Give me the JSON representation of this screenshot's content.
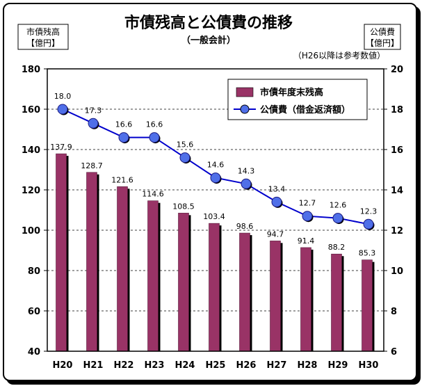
{
  "chart_data": {
    "type": "bar+line",
    "title": "市債残高と公債費の推移",
    "subtitle": "（一般会計）",
    "note": "（H26以降は参考数値）",
    "left_axis_unit": [
      "市債残高",
      "【億円】"
    ],
    "right_axis_unit": [
      "公債費",
      "【億円】"
    ],
    "categories": [
      "H20",
      "H21",
      "H22",
      "H23",
      "H24",
      "H25",
      "H26",
      "H27",
      "H28",
      "H29",
      "H30"
    ],
    "left_ylim": [
      40,
      180
    ],
    "left_ticks": [
      40,
      60,
      80,
      100,
      120,
      140,
      160,
      180
    ],
    "right_ylim": [
      6,
      20
    ],
    "right_ticks": [
      6,
      8,
      10,
      12,
      14,
      16,
      18,
      20
    ],
    "series": [
      {
        "name": "市債年度末残高",
        "type": "bar",
        "axis": "left",
        "color": "#993366",
        "values": [
          137.9,
          128.7,
          121.6,
          114.6,
          108.5,
          103.4,
          98.6,
          94.7,
          91.4,
          88.2,
          85.3
        ],
        "labels": [
          "137.9",
          "128.7",
          "121.6",
          "114.6",
          "108.5",
          "103.4",
          "98.6",
          "94.7",
          "91.4",
          "88.2",
          "85.3"
        ]
      },
      {
        "name": "公債費（借金返済額）",
        "type": "line",
        "axis": "right",
        "color": "#0000cc",
        "marker_color": "#4f6fe8",
        "values": [
          18.0,
          17.3,
          16.6,
          16.6,
          15.6,
          14.6,
          14.3,
          13.4,
          12.7,
          12.6,
          12.3
        ],
        "labels": [
          "18.0",
          "17.3",
          "16.6",
          "16.6",
          "15.6",
          "14.6",
          "14.3",
          "13.4",
          "12.7",
          "12.6",
          "12.3"
        ]
      }
    ],
    "grid": "horizontal-dashed",
    "legend_position": "top-right"
  }
}
